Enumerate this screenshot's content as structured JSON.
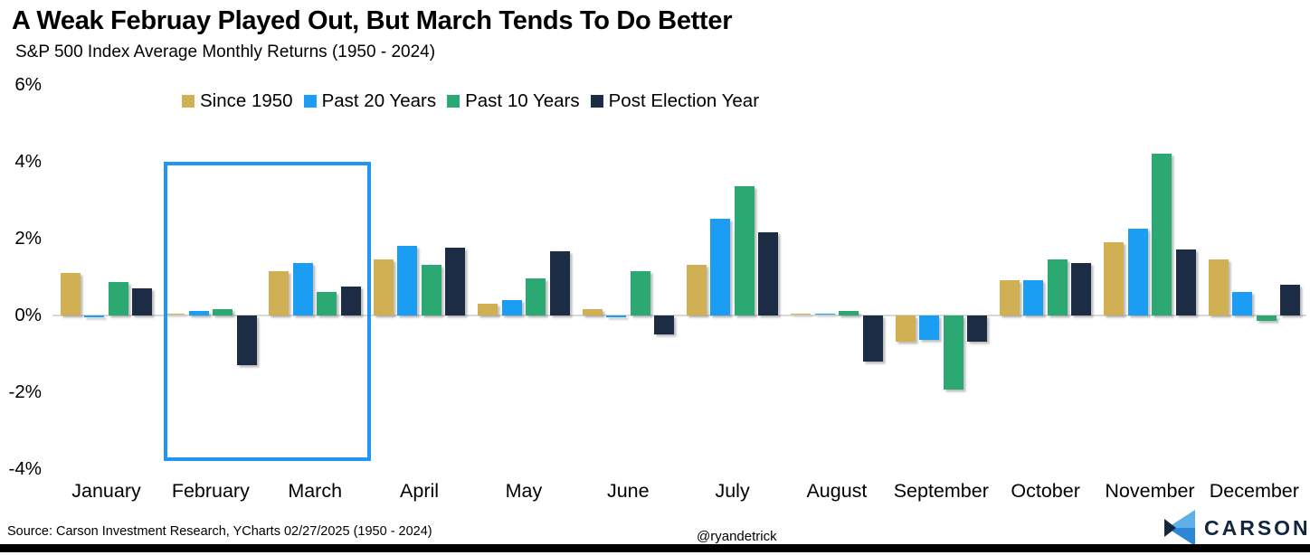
{
  "chart_data": {
    "type": "bar",
    "title": "A Weak Februay Played Out, But March Tends To Do Better",
    "subtitle": "S&P 500 Index Average Monthly Returns (1950 - 2024)",
    "categories": [
      "January",
      "February",
      "March",
      "April",
      "May",
      "June",
      "July",
      "August",
      "September",
      "October",
      "November",
      "December"
    ],
    "series": [
      {
        "name": "Since 1950",
        "color": "#d1af53",
        "values": [
          1.1,
          0.0,
          1.15,
          1.45,
          0.3,
          0.15,
          1.3,
          0.0,
          -0.7,
          0.9,
          1.9,
          1.45
        ]
      },
      {
        "name": "Past 20 Years",
        "color": "#1b9df3",
        "values": [
          -0.05,
          0.1,
          1.35,
          1.8,
          0.4,
          -0.05,
          2.5,
          0.0,
          -0.65,
          0.9,
          2.25,
          0.6
        ]
      },
      {
        "name": "Past 10 Years",
        "color": "#2ca873",
        "values": [
          0.85,
          0.15,
          0.6,
          1.3,
          0.95,
          1.15,
          3.35,
          0.1,
          -1.95,
          1.45,
          4.2,
          -0.15
        ]
      },
      {
        "name": "Post Election Year",
        "color": "#1b2c44",
        "values": [
          0.7,
          -1.3,
          0.75,
          1.75,
          1.65,
          -0.5,
          2.15,
          -1.2,
          -0.7,
          1.35,
          1.7,
          0.8
        ]
      }
    ],
    "yticks": [
      {
        "value": 6,
        "label": "6%"
      },
      {
        "value": 4,
        "label": "4%"
      },
      {
        "value": 2,
        "label": "2%"
      },
      {
        "value": 0,
        "label": "0%"
      },
      {
        "value": -2,
        "label": "-2%"
      },
      {
        "value": -4,
        "label": "-4%"
      }
    ],
    "ylim": [
      -4,
      6
    ],
    "grid": "zero-line-only",
    "legend_position": "top-center",
    "highlight": {
      "months": [
        "February",
        "March"
      ],
      "color": "#2196f3",
      "y_from_pct": 4,
      "y_to_pct": -3.8
    }
  },
  "footer": {
    "source": "Source: Carson Investment Research, YCharts 02/27/2025 (1950 - 2024)",
    "handle": "@ryandetrick",
    "logo_text": "CARSON"
  },
  "logo_colors": {
    "light_blue": "#5fb0e6",
    "mid_blue": "#2e86d6",
    "navy": "#16263c"
  }
}
